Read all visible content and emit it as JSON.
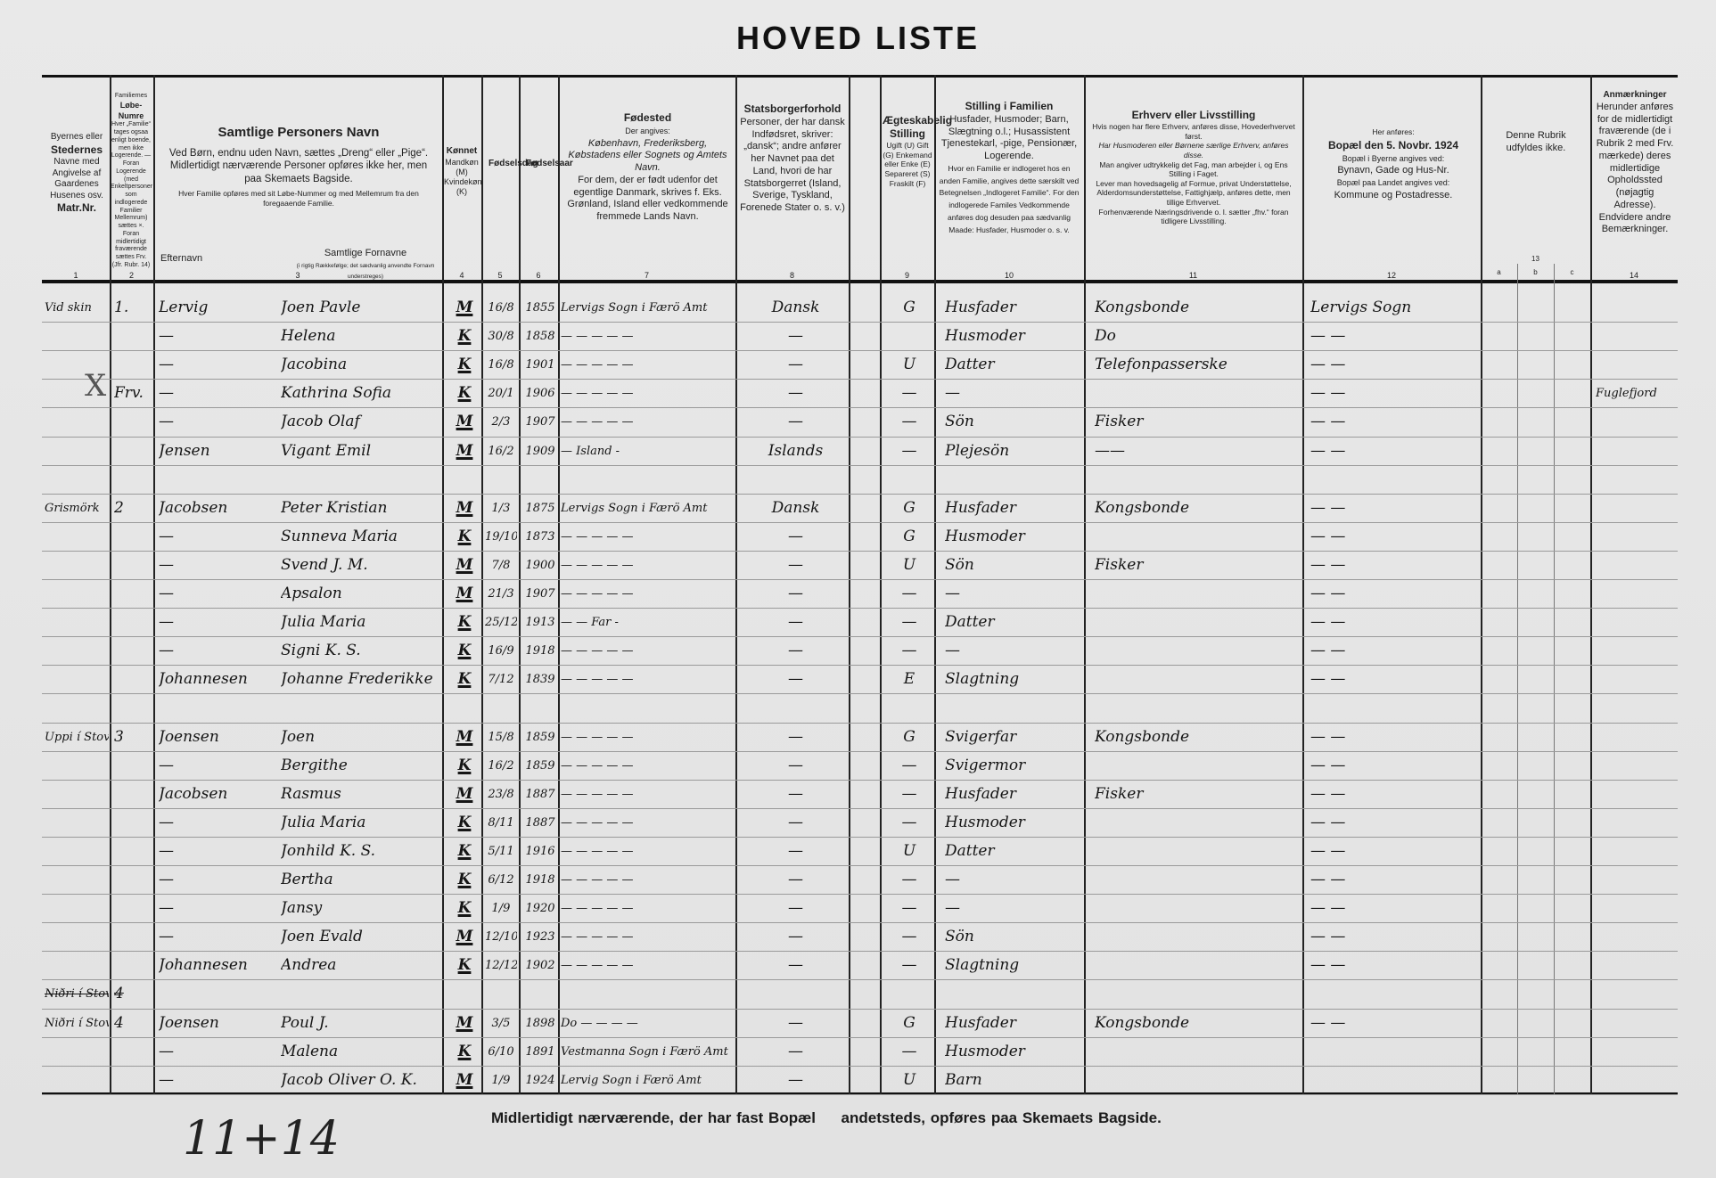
{
  "title": "HOVED LISTE",
  "headers": {
    "c1": {
      "lines": "Byernes eller",
      "b1": "Stedernes",
      "rest": "Navne med Angivelse af Gaardenes Husenes osv.",
      "b2": "Matr.Nr.",
      "num": "1"
    },
    "c2": {
      "top": "Familiernes",
      "b": "Løbe-Numre",
      "rest": "Hver „Familie“ tages ogsaa enligt boende, men ikke Logerende. — Foran Logerende (med Enkeltpersoner som indlogerede Familier Mellemrum) sættes ×. Foran midlertidigt fraværende sættes Frv. (Jfr. Rubr. 14)",
      "num": "2"
    },
    "c3": {
      "title": "Samtlige Personers Navn",
      "p1": "Ved Børn, endnu uden Navn, sættes „Dreng“ eller „Pige“.",
      "p2": "Midlertidigt nærværende Personer opføres ikke her, men paa Skemaets Bagside.",
      "p3": "Hver Familie opføres med sit Løbe-Nummer og med Mellemrum fra den foregaaende Familie.",
      "surname": "Efternavn",
      "firstnames": "Samtlige Fornavne",
      "note": "(i rigtig Rækkefølge; det sædvanlig anvendte Fornavn understreges)",
      "num": "3"
    },
    "c4": {
      "title": "Kønnet",
      "rest": "Mandkøn (M) Kvindekøn (K)",
      "num": "4"
    },
    "c5": {
      "title": "Fødselsdag",
      "num": "5"
    },
    "c6": {
      "title": "Fødselsaar",
      "num": "6"
    },
    "c7": {
      "title": "Fødested",
      "p1": "Der angives:",
      "p2": "København, Frederiksberg, Købstadens eller Sognets og Amtets Navn.",
      "p3": "For dem, der er født udenfor det egentlige Danmark, skrives f. Eks. Grønland, Island eller vedkommende fremmede Lands Navn.",
      "num": "7"
    },
    "c8": {
      "title": "Statsborgerforhold",
      "p1": "Personer, der har dansk Indfødsret, skriver: „dansk“; andre anfører her Navnet paa det Land, hvori de har Statsborgerret (Island, Sverige, Tyskland, Forenede Stater o. s. v.)",
      "num": "8"
    },
    "c9": {
      "title": "Ægteskabelig Stilling",
      "p1": "Ugift (U) Gift (G) Enkemand eller Enke (E) Separeret (S) Fraskilt (F)",
      "num": "9"
    },
    "c10": {
      "title": "Stilling i Familien",
      "p1": "Husfader, Husmoder; Barn, Slægtning o.l.; Husassistent Tjenestekarl, -pige, Pensionær, Logerende.",
      "p2": "Hvor en Familie er indlogeret hos en anden Familie, angives dette særskilt ved Betegnelsen „Indlogeret Familie“. For den indlogerede Familes Vedkommende anføres dog desuden paa sædvanlig Maade: Husfader, Husmoder o. s. v.",
      "num": "10"
    },
    "c11": {
      "title": "Erhverv eller Livsstilling",
      "p1": "Hvis nogen har flere Erhverv, anføres disse, Hovederhvervet først.",
      "p2": "Har Husmoderen eller Børnene særlige Erhverv, anføres disse.",
      "p3": "Man angiver udtrykkelig det Fag, man arbejder i, og Ens Stilling i Faget.",
      "p4": "Lever man hovedsagelig af Formue, privat Understøttelse, Alderdomsunderstøttelse, Fattighjælp, anføres dette, men tillige Erhvervet.",
      "p5": "Forhenværende Næringsdrivende o. l. sætter „fhv.“ foran tidligere Livsstilling.",
      "num": "11"
    },
    "c12": {
      "p0": "Her anføres:",
      "title": "Bopæl den 5. Novbr. 1924",
      "p1": "Bopæl i Byerne angives ved:",
      "p2": "Bynavn, Gade og Hus-Nr.",
      "p3": "Bopæl paa Landet angives ved:",
      "p4": "Kommune og Postadresse.",
      "num": "12"
    },
    "c13": {
      "p1": "Denne Rubrik udfyldes ikke.",
      "num": "13",
      "a": "a",
      "b": "b",
      "c": "c"
    },
    "c14": {
      "title": "Anmærkninger",
      "p1": "Herunder anføres for de midlertidigt fraværende (de i Rubrik 2 med Frv. mærkede) deres midlertidige Opholdssted (nøjagtig Adresse). Endvidere andre Bemærkninger.",
      "num": "14"
    }
  },
  "rows": [
    {
      "place": "Vid skin",
      "num": "1.",
      "surname": "Lervig",
      "first": "Joen Pavle",
      "sex": "M",
      "day": "16/8",
      "year": "1855",
      "birthplace": "Lervigs Sogn i Færö Amt",
      "citizen": "Dansk",
      "marital": "G",
      "position": "Husfader",
      "occupation": "Kongsbonde",
      "residence": "Lervigs Sogn",
      "remarks": ""
    },
    {
      "place": "",
      "num": "",
      "surname": "—",
      "first": "Helena",
      "sex": "K",
      "day": "30/8",
      "year": "1858",
      "birthplace": "— — — — —",
      "citizen": "—",
      "marital": "",
      "position": "Husmoder",
      "occupation": "Do",
      "residence": "—   —",
      "remarks": ""
    },
    {
      "place": "",
      "num": "",
      "surname": "—",
      "first": "Jacobina",
      "sex": "K",
      "day": "16/8",
      "year": "1901",
      "birthplace": "— — — — —",
      "citizen": "—",
      "marital": "U",
      "position": "Datter",
      "occupation": "Telefonpasserske",
      "residence": "—   —",
      "remarks": ""
    },
    {
      "place": "X",
      "num": "Frv.",
      "surname": "—",
      "first": "Kathrina Sofia",
      "sex": "K",
      "day": "20/1",
      "year": "1906",
      "birthplace": "— — — — —",
      "citizen": "—",
      "marital": "—",
      "position": "—",
      "occupation": "",
      "residence": "—   —",
      "remarks": "Fuglefjord"
    },
    {
      "place": "",
      "num": "",
      "surname": "—",
      "first": "Jacob Olaf",
      "sex": "M",
      "day": "2/3",
      "year": "1907",
      "birthplace": "— — — — —",
      "citizen": "—",
      "marital": "—",
      "position": "Sön",
      "occupation": "Fisker",
      "residence": "—   —",
      "remarks": ""
    },
    {
      "place": "",
      "num": "",
      "surname": "Jensen",
      "first": "Vigant Emil",
      "sex": "M",
      "day": "16/2",
      "year": "1909",
      "birthplace": "— Island -",
      "citizen": "Islands",
      "marital": "—",
      "position": "Plejesön",
      "occupation": "——",
      "residence": "—   —",
      "remarks": ""
    },
    {
      "place": "",
      "num": "",
      "surname": "",
      "first": "",
      "sex": "",
      "day": "",
      "year": "",
      "birthplace": "",
      "citizen": "",
      "marital": "",
      "position": "",
      "occupation": "",
      "residence": "",
      "remarks": ""
    },
    {
      "place": "Grismörk",
      "num": "2",
      "surname": "Jacobsen",
      "first": "Peter Kristian",
      "sex": "M",
      "day": "1/3",
      "year": "1875",
      "birthplace": "Lervigs Sogn i Færö Amt",
      "citizen": "Dansk",
      "marital": "G",
      "position": "Husfader",
      "occupation": "Kongsbonde",
      "residence": "—   —",
      "remarks": ""
    },
    {
      "place": "",
      "num": "",
      "surname": "—",
      "first": "Sunneva Maria",
      "sex": "K",
      "day": "19/10",
      "year": "1873",
      "birthplace": "— — — — —",
      "citizen": "—",
      "marital": "G",
      "position": "Husmoder",
      "occupation": "",
      "residence": "—   —",
      "remarks": ""
    },
    {
      "place": "",
      "num": "",
      "surname": "—",
      "first": "Svend J. M.",
      "sex": "M",
      "day": "7/8",
      "year": "1900",
      "birthplace": "— — — — —",
      "citizen": "—",
      "marital": "U",
      "position": "Sön",
      "occupation": "Fisker",
      "residence": "—   —",
      "remarks": ""
    },
    {
      "place": "",
      "num": "",
      "surname": "—",
      "first": "Apsalon",
      "sex": "M",
      "day": "21/3",
      "year": "1907",
      "birthplace": "— — — — —",
      "citizen": "—",
      "marital": "—",
      "position": "—",
      "occupation": "",
      "residence": "—   —",
      "remarks": ""
    },
    {
      "place": "",
      "num": "",
      "surname": "—",
      "first": "Julia Maria",
      "sex": "K",
      "day": "25/12",
      "year": "1913",
      "birthplace": "— — Far -",
      "citizen": "—",
      "marital": "—",
      "position": "Datter",
      "occupation": "",
      "residence": "—   —",
      "remarks": ""
    },
    {
      "place": "",
      "num": "",
      "surname": "—",
      "first": "Signi K. S.",
      "sex": "K",
      "day": "16/9",
      "year": "1918",
      "birthplace": "— — — — —",
      "citizen": "—",
      "marital": "—",
      "position": "—",
      "occupation": "",
      "residence": "—   —",
      "remarks": ""
    },
    {
      "place": "",
      "num": "",
      "surname": "Johannesen",
      "first": "Johanne Frederikke",
      "sex": "K",
      "day": "7/12",
      "year": "1839",
      "birthplace": "— — — — —",
      "citizen": "—",
      "marital": "E",
      "position": "Slagtning",
      "occupation": "",
      "residence": "—   —",
      "remarks": ""
    },
    {
      "place": "",
      "num": "",
      "surname": "",
      "first": "",
      "sex": "",
      "day": "",
      "year": "",
      "birthplace": "",
      "citizen": "",
      "marital": "",
      "position": "",
      "occupation": "",
      "residence": "",
      "remarks": ""
    },
    {
      "place": "Uppi í Stovu",
      "num": "3",
      "surname": "Joensen",
      "first": "Joen",
      "sex": "M",
      "day": "15/8",
      "year": "1859",
      "birthplace": "— — — — —",
      "citizen": "—",
      "marital": "G",
      "position": "Svigerfar",
      "occupation": "Kongsbonde",
      "residence": "—   —",
      "remarks": ""
    },
    {
      "place": "",
      "num": "",
      "surname": "—",
      "first": "Bergithe",
      "sex": "K",
      "day": "16/2",
      "year": "1859",
      "birthplace": "— — — — —",
      "citizen": "—",
      "marital": "—",
      "position": "Svigermor",
      "occupation": "",
      "residence": "—   —",
      "remarks": ""
    },
    {
      "place": "",
      "num": "",
      "surname": "Jacobsen",
      "first": "Rasmus",
      "sex": "M",
      "day": "23/8",
      "year": "1887",
      "birthplace": "— — — — —",
      "citizen": "—",
      "marital": "—",
      "position": "Husfader",
      "occupation": "Fisker",
      "residence": "—   —",
      "remarks": ""
    },
    {
      "place": "",
      "num": "",
      "surname": "—",
      "first": "Julia Maria",
      "sex": "K",
      "day": "8/11",
      "year": "1887",
      "birthplace": "— — — — —",
      "citizen": "—",
      "marital": "—",
      "position": "Husmoder",
      "occupation": "",
      "residence": "—   —",
      "remarks": ""
    },
    {
      "place": "",
      "num": "",
      "surname": "—",
      "first": "Jonhild K. S.",
      "sex": "K",
      "day": "5/11",
      "year": "1916",
      "birthplace": "— — — — —",
      "citizen": "—",
      "marital": "U",
      "position": "Datter",
      "occupation": "",
      "residence": "—   —",
      "remarks": ""
    },
    {
      "place": "",
      "num": "",
      "surname": "—",
      "first": "Bertha",
      "sex": "K",
      "day": "6/12",
      "year": "1918",
      "birthplace": "— — — — —",
      "citizen": "—",
      "marital": "—",
      "position": "—",
      "occupation": "",
      "residence": "—   —",
      "remarks": ""
    },
    {
      "place": "",
      "num": "",
      "surname": "—",
      "first": "Jansy",
      "sex": "K",
      "day": "1/9",
      "year": "1920",
      "birthplace": "— — — — —",
      "citizen": "—",
      "marital": "—",
      "position": "—",
      "occupation": "",
      "residence": "—   —",
      "remarks": ""
    },
    {
      "place": "",
      "num": "",
      "surname": "—",
      "first": "Joen Evald",
      "sex": "M",
      "day": "12/10",
      "year": "1923",
      "birthplace": "— — — — —",
      "citizen": "—",
      "marital": "—",
      "position": "Sön",
      "occupation": "",
      "residence": "—   —",
      "remarks": ""
    },
    {
      "place": "",
      "num": "",
      "surname": "Johannesen",
      "first": "Andrea",
      "sex": "K",
      "day": "12/12",
      "year": "1902",
      "birthplace": "— — — — —",
      "citizen": "—",
      "marital": "—",
      "position": "Slagtning",
      "occupation": "",
      "residence": "—   —",
      "remarks": ""
    },
    {
      "place": "Niðri í Stovu",
      "num": "4",
      "struck": true,
      "surname": "",
      "first": "",
      "sex": "",
      "day": "",
      "year": "",
      "birthplace": "",
      "citizen": "",
      "marital": "",
      "position": "",
      "occupation": "",
      "residence": "",
      "remarks": ""
    },
    {
      "place": "Niðri í Stovu",
      "num": "4",
      "surname": "Joensen",
      "first": "Poul J.",
      "sex": "M",
      "day": "3/5",
      "year": "1898",
      "birthplace": "Do — — — —",
      "citizen": "—",
      "marital": "G",
      "position": "Husfader",
      "occupation": "Kongsbonde",
      "residence": "—   —",
      "remarks": ""
    },
    {
      "place": "",
      "num": "",
      "surname": "—",
      "first": "Malena",
      "sex": "K",
      "day": "6/10",
      "year": "1891",
      "birthplace": "Vestmanna Sogn i Færö Amt",
      "citizen": "—",
      "marital": "—",
      "position": "Husmoder",
      "occupation": "",
      "residence": "",
      "remarks": ""
    },
    {
      "place": "",
      "num": "",
      "surname": "—",
      "first": "Jacob Oliver O. K.",
      "sex": "M",
      "day": "1/9",
      "year": "1924",
      "birthplace": "Lervig Sogn i Færö Amt",
      "citizen": "—",
      "marital": "U",
      "position": "Barn",
      "occupation": "",
      "residence": "",
      "remarks": ""
    }
  ],
  "footer": "Midlertidigt nærværende, der har fast Bopæl     andetsteds, opføres paa Skemaets Bagside.",
  "tally": "11+14"
}
